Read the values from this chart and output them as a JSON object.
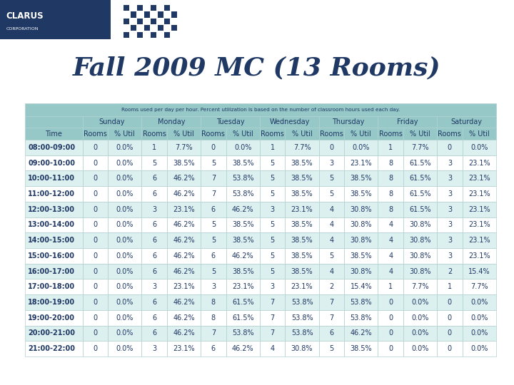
{
  "title": "Fall 2009 MC (13 Rooms)",
  "subtitle": "Rooms used per day per hour. Percent utilization is based on the number of classroom hours used each day.",
  "days": [
    "Sunday",
    "Monday",
    "Tuesday",
    "Wednesday",
    "Thursday",
    "Friday",
    "Saturday"
  ],
  "col_labels": [
    "Time",
    "Rooms",
    "% Util",
    "Rooms",
    "% Util",
    "Rooms",
    "% Util",
    "Rooms",
    "% Util",
    "Rooms",
    "% Util",
    "Rooms",
    "% Util",
    "Rooms",
    "% Util"
  ],
  "rows": [
    [
      "08:00-09:00",
      "0",
      "0.0%",
      "1",
      "7.7%",
      "0",
      "0.0%",
      "1",
      "7.7%",
      "0",
      "0.0%",
      "1",
      "7.7%",
      "0",
      "0.0%"
    ],
    [
      "09:00-10:00",
      "0",
      "0.0%",
      "5",
      "38.5%",
      "5",
      "38.5%",
      "5",
      "38.5%",
      "3",
      "23.1%",
      "8",
      "61.5%",
      "3",
      "23.1%"
    ],
    [
      "10:00-11:00",
      "0",
      "0.0%",
      "6",
      "46.2%",
      "7",
      "53.8%",
      "5",
      "38.5%",
      "5",
      "38.5%",
      "8",
      "61.5%",
      "3",
      "23.1%"
    ],
    [
      "11:00-12:00",
      "0",
      "0.0%",
      "6",
      "46.2%",
      "7",
      "53.8%",
      "5",
      "38.5%",
      "5",
      "38.5%",
      "8",
      "61.5%",
      "3",
      "23.1%"
    ],
    [
      "12:00-13:00",
      "0",
      "0.0%",
      "3",
      "23.1%",
      "6",
      "46.2%",
      "3",
      "23.1%",
      "4",
      "30.8%",
      "8",
      "61.5%",
      "3",
      "23.1%"
    ],
    [
      "13:00-14:00",
      "0",
      "0.0%",
      "6",
      "46.2%",
      "5",
      "38.5%",
      "5",
      "38.5%",
      "4",
      "30.8%",
      "4",
      "30.8%",
      "3",
      "23.1%"
    ],
    [
      "14:00-15:00",
      "0",
      "0.0%",
      "6",
      "46.2%",
      "5",
      "38.5%",
      "5",
      "38.5%",
      "4",
      "30.8%",
      "4",
      "30.8%",
      "3",
      "23.1%"
    ],
    [
      "15:00-16:00",
      "0",
      "0.0%",
      "6",
      "46.2%",
      "6",
      "46.2%",
      "5",
      "38.5%",
      "5",
      "38.5%",
      "4",
      "30.8%",
      "3",
      "23.1%"
    ],
    [
      "16:00-17:00",
      "0",
      "0.0%",
      "6",
      "46.2%",
      "5",
      "38.5%",
      "5",
      "38.5%",
      "4",
      "30.8%",
      "4",
      "30.8%",
      "2",
      "15.4%"
    ],
    [
      "17:00-18:00",
      "0",
      "0.0%",
      "3",
      "23.1%",
      "3",
      "23.1%",
      "3",
      "23.1%",
      "2",
      "15.4%",
      "1",
      "7.7%",
      "1",
      "7.7%"
    ],
    [
      "18:00-19:00",
      "0",
      "0.0%",
      "6",
      "46.2%",
      "8",
      "61.5%",
      "7",
      "53.8%",
      "7",
      "53.8%",
      "0",
      "0.0%",
      "0",
      "0.0%"
    ],
    [
      "19:00-20:00",
      "0",
      "0.0%",
      "6",
      "46.2%",
      "8",
      "61.5%",
      "7",
      "53.8%",
      "7",
      "53.8%",
      "0",
      "0.0%",
      "0",
      "0.0%"
    ],
    [
      "20:00-21:00",
      "0",
      "0.0%",
      "6",
      "46.2%",
      "7",
      "53.8%",
      "7",
      "53.8%",
      "6",
      "46.2%",
      "0",
      "0.0%",
      "0",
      "0.0%"
    ],
    [
      "21:00-22:00",
      "0",
      "0.0%",
      "3",
      "23.1%",
      "6",
      "46.2%",
      "4",
      "30.8%",
      "5",
      "38.5%",
      "0",
      "0.0%",
      "0",
      "0.0%"
    ]
  ],
  "bg_color": "#ffffff",
  "title_color": "#1F3864",
  "table_header_bg": "#96C8C8",
  "table_row_even_bg": "#DCF0F0",
  "table_row_odd_bg": "#ffffff",
  "table_text_color": "#1F3864",
  "logo_box_color": "#1F3864",
  "logo_text": "CLARUS",
  "logo_subtext": "CORPORATION",
  "checker_color": "#1F3864",
  "title_fontsize": 26,
  "table_fontsize": 7,
  "header_fontsize": 7
}
